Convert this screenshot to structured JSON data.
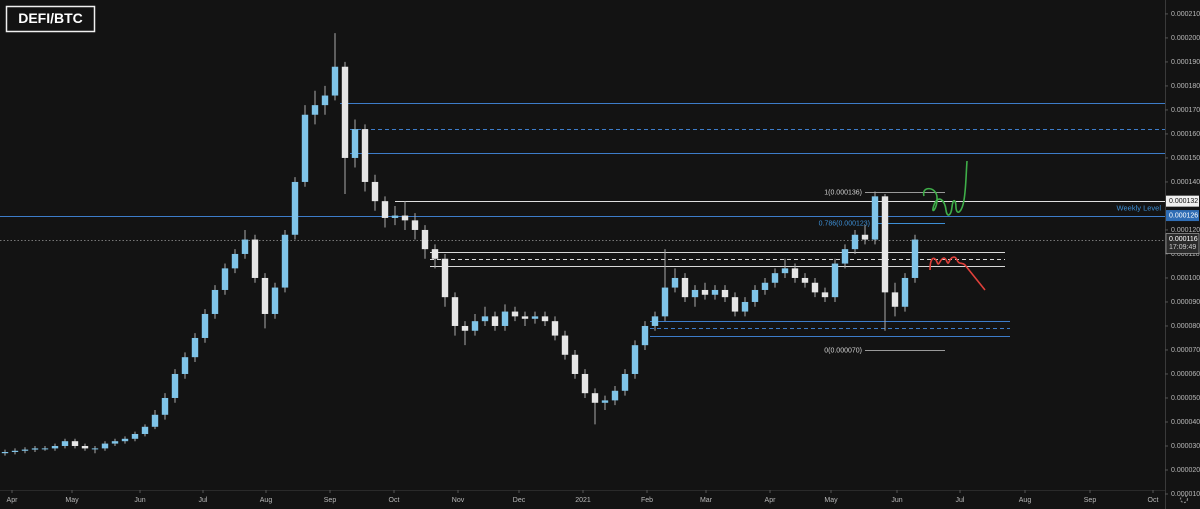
{
  "chart_data": {
    "type": "candlestick",
    "title": "DEFI/BTC",
    "grid": false,
    "up_color": "#7fc4e8",
    "down_color": "#e6e6e6",
    "wick_color": "#a9a9a9",
    "xlim": [
      0,
      116.5
    ],
    "xticks": [
      {
        "value": 1.2,
        "label": "Apr"
      },
      {
        "value": 7.2,
        "label": "May"
      },
      {
        "value": 14,
        "label": "Jun"
      },
      {
        "value": 20.3,
        "label": "Jul"
      },
      {
        "value": 26.6,
        "label": "Aug"
      },
      {
        "value": 33,
        "label": "Sep"
      },
      {
        "value": 39.4,
        "label": "Oct"
      },
      {
        "value": 45.8,
        "label": "Nov"
      },
      {
        "value": 51.9,
        "label": "Dec"
      },
      {
        "value": 58.3,
        "label": "2021"
      },
      {
        "value": 64.7,
        "label": "Feb"
      },
      {
        "value": 70.6,
        "label": "Mar"
      },
      {
        "value": 77,
        "label": "Apr"
      },
      {
        "value": 83.1,
        "label": "May"
      },
      {
        "value": 89.7,
        "label": "Jun"
      },
      {
        "value": 96,
        "label": "Jul"
      },
      {
        "value": 102.5,
        "label": "Aug"
      },
      {
        "value": 109,
        "label": "Sep"
      },
      {
        "value": 115.3,
        "label": "Oct"
      }
    ],
    "ylim": [
      3.75e-06,
      0.0002158
    ],
    "yticks": [
      {
        "value": 0.00021,
        "label": "0.000210"
      },
      {
        "value": 0.0002,
        "label": "0.000200"
      },
      {
        "value": 0.00019,
        "label": "0.000190"
      },
      {
        "value": 0.00018,
        "label": "0.000180"
      },
      {
        "value": 0.00017,
        "label": "0.000170"
      },
      {
        "value": 0.00016,
        "label": "0.000160"
      },
      {
        "value": 0.00015,
        "label": "0.000150"
      },
      {
        "value": 0.00014,
        "label": "0.000140"
      },
      {
        "value": 0.00012,
        "label": "0.000120"
      },
      {
        "value": 0.00011,
        "label": "0.000110"
      },
      {
        "value": 0.0001,
        "label": "0.000100"
      },
      {
        "value": 9e-05,
        "label": "0.000090"
      },
      {
        "value": 8e-05,
        "label": "0.000080"
      },
      {
        "value": 7e-05,
        "label": "0.000070"
      },
      {
        "value": 6e-05,
        "label": "0.000060"
      },
      {
        "value": 5e-05,
        "label": "0.000050"
      },
      {
        "value": 4e-05,
        "label": "0.000040"
      },
      {
        "value": 3e-05,
        "label": "0.000030"
      },
      {
        "value": 2e-05,
        "label": "0.000020"
      },
      {
        "value": 1e-05,
        "label": "0.000010"
      }
    ],
    "open": [
      2.7e-05,
      2.75e-05,
      2.8e-05,
      2.85e-05,
      2.9e-05,
      2.9e-05,
      3e-05,
      3.2e-05,
      3e-05,
      2.9e-05,
      2.9e-05,
      3.1e-05,
      3.2e-05,
      3.3e-05,
      3.5e-05,
      3.8e-05,
      4.3e-05,
      5e-05,
      6e-05,
      6.7e-05,
      7.5e-05,
      8.5e-05,
      9.5e-05,
      0.000104,
      0.00011,
      0.000116,
      0.0001,
      8.5e-05,
      9.6e-05,
      0.000118,
      0.00014,
      0.000168,
      0.000172,
      0.000176,
      0.000188,
      0.00015,
      0.000162,
      0.00014,
      0.000132,
      0.000125,
      0.000126,
      0.000124,
      0.00012,
      0.000112,
      0.000108,
      9.2e-05,
      8e-05,
      7.8e-05,
      8.2e-05,
      8.4e-05,
      8e-05,
      8.6e-05,
      8.4e-05,
      8.3e-05,
      8.4e-05,
      8.2e-05,
      7.6e-05,
      6.8e-05,
      6e-05,
      5.2e-05,
      4.8e-05,
      4.9e-05,
      5.3e-05,
      6e-05,
      7.2e-05,
      8e-05,
      8.4e-05,
      9.6e-05,
      0.0001,
      9.2e-05,
      9.5e-05,
      9.3e-05,
      9.5e-05,
      9.2e-05,
      8.6e-05,
      9e-05,
      9.5e-05,
      9.8e-05,
      0.000102,
      0.000104,
      0.0001,
      9.8e-05,
      9.4e-05,
      9.2e-05,
      0.000106,
      0.000112,
      0.000118,
      0.000116,
      0.000134,
      9.4e-05,
      8.8e-05,
      0.0001
    ],
    "high": [
      2.85e-05,
      2.9e-05,
      2.95e-05,
      3e-05,
      3e-05,
      3.1e-05,
      3.3e-05,
      3.3e-05,
      3.1e-05,
      3e-05,
      3.2e-05,
      3.3e-05,
      3.4e-05,
      3.6e-05,
      3.9e-05,
      4.5e-05,
      5.2e-05,
      6.2e-05,
      6.9e-05,
      7.7e-05,
      8.7e-05,
      9.7e-05,
      0.000106,
      0.000112,
      0.00012,
      0.000118,
      0.000102,
      9.8e-05,
      0.00012,
      0.000142,
      0.000172,
      0.000178,
      0.00018,
      0.000202,
      0.00019,
      0.000166,
      0.000164,
      0.000143,
      0.000134,
      0.00013,
      0.000132,
      0.000127,
      0.000122,
      0.000114,
      0.00011,
      9.4e-05,
      8.2e-05,
      8.5e-05,
      8.8e-05,
      8.6e-05,
      8.9e-05,
      8.8e-05,
      8.6e-05,
      8.6e-05,
      8.6e-05,
      8.4e-05,
      7.8e-05,
      7e-05,
      6.2e-05,
      5.4e-05,
      5.1e-05,
      5.5e-05,
      6.2e-05,
      7.4e-05,
      8.2e-05,
      8.6e-05,
      0.000112,
      0.000104,
      0.000102,
      9.7e-05,
      9.8e-05,
      9.7e-05,
      9.7e-05,
      9.4e-05,
      9.2e-05,
      9.7e-05,
      0.0001,
      0.000104,
      0.000108,
      0.000106,
      0.000102,
      0.0001,
      9.6e-05,
      0.000108,
      0.000114,
      0.00012,
      0.000122,
      0.000136,
      0.000135,
      9.8e-05,
      0.000102,
      0.000118
    ],
    "low": [
      2.6e-05,
      2.65e-05,
      2.7e-05,
      2.75e-05,
      2.8e-05,
      2.8e-05,
      2.9e-05,
      2.9e-05,
      2.8e-05,
      2.7e-05,
      2.8e-05,
      3e-05,
      3.1e-05,
      3.2e-05,
      3.4e-05,
      3.7e-05,
      4.1e-05,
      4.8e-05,
      5.8e-05,
      6.5e-05,
      7.3e-05,
      8.3e-05,
      9.3e-05,
      0.000102,
      0.000108,
      9.8e-05,
      7.9e-05,
      8.3e-05,
      9.4e-05,
      0.000116,
      0.000138,
      0.000164,
      0.000168,
      0.000174,
      0.000135,
      0.000146,
      0.000136,
      0.000128,
      0.000121,
      0.000122,
      0.00012,
      0.000116,
      0.000108,
      0.000104,
      8.8e-05,
      7.6e-05,
      7.2e-05,
      7.6e-05,
      8e-05,
      7.8e-05,
      7.8e-05,
      8.2e-05,
      8e-05,
      8.1e-05,
      8e-05,
      7.4e-05,
      6.6e-05,
      5.8e-05,
      5e-05,
      3.9e-05,
      4.5e-05,
      4.7e-05,
      5.1e-05,
      5.8e-05,
      7e-05,
      7.8e-05,
      8.2e-05,
      9.4e-05,
      9e-05,
      8.8e-05,
      9.1e-05,
      9.1e-05,
      9e-05,
      8.4e-05,
      8.4e-05,
      8.8e-05,
      9.3e-05,
      9.6e-05,
      0.0001,
      9.8e-05,
      9.6e-05,
      9.2e-05,
      9e-05,
      9e-05,
      0.000104,
      0.00011,
      0.000114,
      0.000114,
      7.8e-05,
      8.4e-05,
      8.6e-05,
      9.8e-05
    ],
    "close": [
      2.75e-05,
      2.8e-05,
      2.85e-05,
      2.9e-05,
      2.9e-05,
      3e-05,
      3.2e-05,
      3e-05,
      2.9e-05,
      2.9e-05,
      3.1e-05,
      3.2e-05,
      3.3e-05,
      3.5e-05,
      3.8e-05,
      4.3e-05,
      5e-05,
      6e-05,
      6.7e-05,
      7.5e-05,
      8.5e-05,
      9.5e-05,
      0.000104,
      0.00011,
      0.000116,
      0.0001,
      8.5e-05,
      9.6e-05,
      0.000118,
      0.00014,
      0.000168,
      0.000172,
      0.000176,
      0.000188,
      0.00015,
      0.000162,
      0.00014,
      0.000132,
      0.000125,
      0.000126,
      0.000124,
      0.00012,
      0.000112,
      0.000108,
      9.2e-05,
      8e-05,
      7.8e-05,
      8.2e-05,
      8.4e-05,
      8e-05,
      8.6e-05,
      8.4e-05,
      8.3e-05,
      8.4e-05,
      8.2e-05,
      7.6e-05,
      6.8e-05,
      6e-05,
      5.2e-05,
      4.8e-05,
      4.9e-05,
      5.3e-05,
      6e-05,
      7.2e-05,
      8e-05,
      8.4e-05,
      9.6e-05,
      0.0001,
      9.2e-05,
      9.5e-05,
      9.3e-05,
      9.5e-05,
      9.2e-05,
      8.6e-05,
      9e-05,
      9.5e-05,
      9.8e-05,
      0.000102,
      0.000104,
      0.0001,
      9.8e-05,
      9.4e-05,
      9.2e-05,
      0.000106,
      0.000112,
      0.000118,
      0.000116,
      0.000134,
      9.4e-05,
      8.8e-05,
      0.0001,
      0.000116
    ],
    "levels": [
      {
        "value": 0.000173,
        "x": [
          34,
          116.5
        ],
        "color": "#3d7cc9",
        "style": "solid"
      },
      {
        "value": 0.000162,
        "x": [
          35,
          116.5
        ],
        "color": "#3d7cc9",
        "style": "dashed"
      },
      {
        "value": 0.000152,
        "x": [
          35,
          116.5
        ],
        "color": "#3d7cc9",
        "style": "solid"
      },
      {
        "value": 0.000126,
        "x": [
          0,
          116.5
        ],
        "color": "#3d7cc9",
        "style": "solid"
      },
      {
        "value": 0.000132,
        "x": [
          39.5,
          116.5
        ],
        "color": "#e0e0e0",
        "style": "solid"
      },
      {
        "value": 0.000136,
        "x": [
          86.5,
          94.5
        ],
        "color": "#9a9a9a",
        "style": "solid",
        "label": "1(0.000136)"
      },
      {
        "value": 0.000123,
        "x": [
          87.3,
          94.5
        ],
        "color": "#3d8fd6",
        "style": "solid",
        "label": "0.786(0.000123)"
      },
      {
        "value": 7e-05,
        "x": [
          86.5,
          94.5
        ],
        "color": "#9a9a9a",
        "style": "solid",
        "label": "0(0.000070)"
      },
      {
        "value": 0.000111,
        "x": [
          43,
          100.5
        ],
        "color": "#d8d8d8",
        "style": "solid"
      },
      {
        "value": 0.000108,
        "x": [
          43,
          100.5
        ],
        "color": "#d8d8d8",
        "style": "dashed"
      },
      {
        "value": 0.000105,
        "x": [
          43,
          100.5
        ],
        "color": "#d8d8d8",
        "style": "solid"
      },
      {
        "value": 8.2e-05,
        "x": [
          65,
          101
        ],
        "color": "#3d7cc9",
        "style": "solid"
      },
      {
        "value": 7.9e-05,
        "x": [
          65,
          101
        ],
        "color": "#3d7cc9",
        "style": "dashed"
      },
      {
        "value": 7.6e-05,
        "x": [
          65,
          101
        ],
        "color": "#3d7cc9",
        "style": "solid"
      },
      {
        "value": 0.000116,
        "x": [
          0,
          116.5
        ],
        "color": "#777777",
        "style": "dotted"
      }
    ],
    "annotations": [
      {
        "text": "Weekly Level",
        "value": 0.000126,
        "color": "#3d8fd6"
      }
    ],
    "price_labels": [
      {
        "value": 0.000132,
        "label": "0.000132",
        "color": "#f0f0f0",
        "text_color": "#111111"
      },
      {
        "value": 0.000126,
        "label": "0.000126",
        "color": "#2f6db5",
        "text_color": "#ffffff"
      }
    ],
    "last_price": {
      "value": 0.000116,
      "label": "0.000116",
      "time": "17:09:49"
    }
  }
}
